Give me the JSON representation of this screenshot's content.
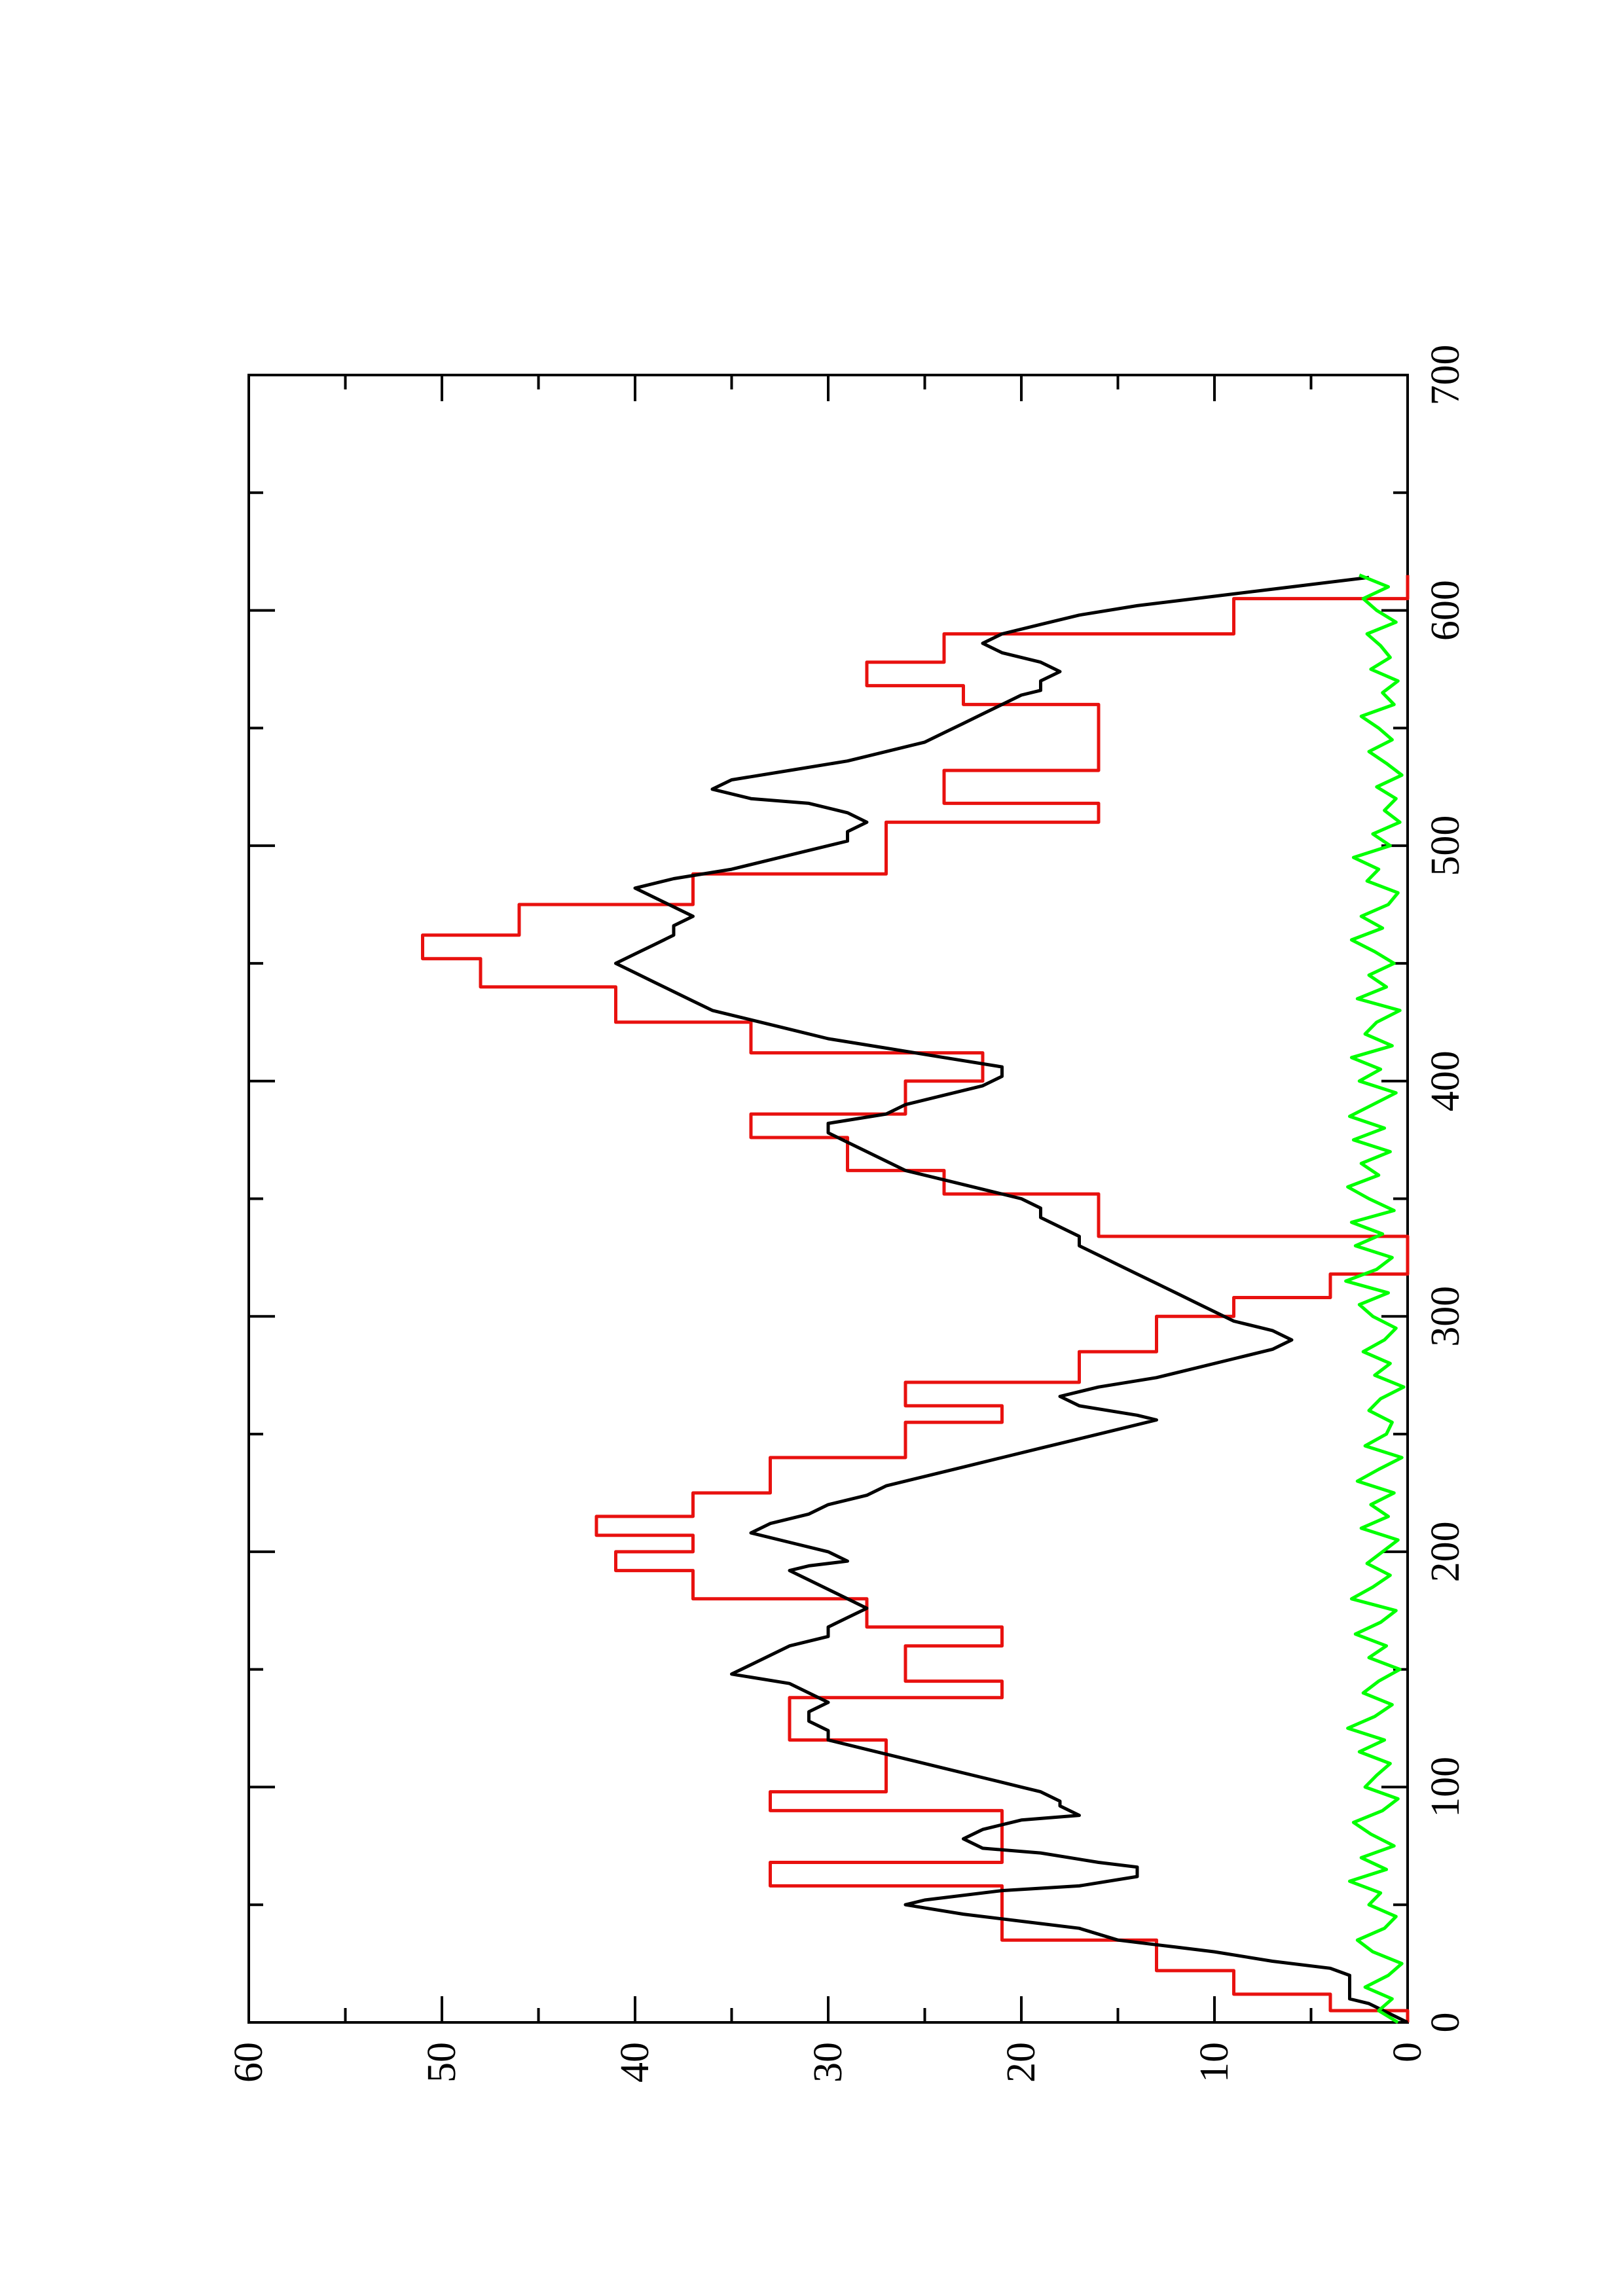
{
  "chart_data": {
    "type": "line",
    "title": "",
    "xlabel": "",
    "ylabel": "",
    "orientation": "rotated-90-ccw",
    "xlim": [
      0,
      700
    ],
    "ylim": [
      0,
      60
    ],
    "x_ticks": [
      0,
      100,
      200,
      300,
      400,
      500,
      600,
      700
    ],
    "x_tick_labels": [
      "0",
      "100",
      "200",
      "300",
      "400",
      "500",
      "600",
      "700"
    ],
    "x_minor_ticks": [
      50,
      150,
      250,
      350,
      450,
      550,
      650
    ],
    "y_ticks": [
      0,
      10,
      20,
      30,
      40,
      50,
      60
    ],
    "y_tick_labels": [
      "0",
      "10",
      "20",
      "30",
      "40",
      "50",
      "60"
    ],
    "y_minor_ticks": [
      5,
      15,
      25,
      35,
      45,
      55
    ],
    "grid": false,
    "legend": "none",
    "series": [
      {
        "color": "#e8110f",
        "x": [
          0,
          5,
          5,
          12,
          12,
          22,
          22,
          35,
          35,
          58,
          58,
          68,
          68,
          90,
          90,
          98,
          98,
          120,
          120,
          138,
          138,
          145,
          145,
          160,
          160,
          168,
          168,
          180,
          180,
          192,
          192,
          200,
          200,
          207,
          207,
          215,
          215,
          225,
          225,
          240,
          240,
          255,
          255,
          262,
          262,
          272,
          272,
          285,
          285,
          300,
          300,
          308,
          308,
          318,
          318,
          334,
          334,
          352,
          352,
          362,
          362,
          376,
          376,
          386,
          386,
          400,
          400,
          412,
          412,
          425,
          425,
          440,
          440,
          452,
          452,
          462,
          462,
          475,
          475,
          488,
          488,
          510,
          510,
          518,
          518,
          532,
          532,
          560,
          560,
          568,
          568,
          578,
          578,
          590,
          590,
          605,
          605,
          615
        ],
        "y": [
          0,
          0,
          4,
          4,
          9,
          9,
          13,
          13,
          21,
          21,
          33,
          33,
          21,
          21,
          33,
          33,
          27,
          27,
          32,
          32,
          21,
          21,
          26,
          26,
          21,
          21,
          28,
          28,
          37,
          37,
          41,
          41,
          37,
          37,
          42,
          42,
          37,
          37,
          33,
          33,
          26,
          26,
          21,
          21,
          26,
          26,
          17,
          17,
          13,
          13,
          9,
          9,
          4,
          4,
          0,
          0,
          16,
          16,
          24,
          24,
          29,
          29,
          34,
          34,
          26,
          26,
          22,
          22,
          34,
          34,
          41,
          41,
          48,
          48,
          51,
          51,
          46,
          46,
          37,
          37,
          27,
          27,
          16,
          16,
          24,
          24,
          16,
          16,
          23,
          23,
          28,
          28,
          24,
          24,
          9,
          9,
          0,
          0
        ]
      },
      {
        "color": "#000000",
        "x": [
          0,
          4,
          8,
          10,
          15,
          20,
          23,
          26,
          30,
          32,
          35,
          40,
          42,
          46,
          50,
          52,
          56,
          58,
          62,
          66,
          68,
          72,
          74,
          78,
          82,
          86,
          88,
          92,
          94,
          98,
          100,
          104,
          108,
          112,
          116,
          120,
          124,
          128,
          132,
          136,
          140,
          144,
          148,
          152,
          156,
          160,
          164,
          168,
          172,
          176,
          180,
          184,
          188,
          192,
          194,
          196,
          200,
          204,
          208,
          212,
          216,
          220,
          224,
          228,
          232,
          236,
          240,
          244,
          248,
          252,
          256,
          258,
          262,
          266,
          270,
          274,
          278,
          282,
          286,
          290,
          294,
          298,
          302,
          306,
          310,
          314,
          318,
          322,
          326,
          330,
          334,
          338,
          342,
          346,
          350,
          354,
          358,
          362,
          366,
          370,
          374,
          378,
          382,
          386,
          390,
          394,
          398,
          402,
          406,
          410,
          414,
          418,
          422,
          426,
          430,
          434,
          438,
          442,
          446,
          450,
          454,
          458,
          462,
          466,
          470,
          474,
          478,
          482,
          486,
          490,
          494,
          498,
          502,
          506,
          510,
          514,
          518,
          520,
          524,
          528,
          532,
          536,
          540,
          544,
          548,
          552,
          556,
          560,
          564,
          566,
          570,
          574,
          578,
          582,
          586,
          590,
          594,
          598,
          602,
          606,
          610,
          614
        ],
        "y": [
          0,
          1,
          2,
          3,
          3,
          3,
          4,
          7,
          10,
          12,
          15,
          17,
          19,
          23,
          26,
          25,
          21,
          17,
          14,
          14,
          16,
          19,
          22,
          23,
          22,
          20,
          17,
          18,
          18,
          19,
          20,
          22,
          24,
          26,
          28,
          30,
          30,
          31,
          31,
          30,
          31,
          32,
          35,
          34,
          33,
          32,
          30,
          30,
          29,
          28,
          29,
          30,
          31,
          32,
          31,
          29,
          30,
          32,
          34,
          33,
          31,
          30,
          28,
          27,
          25,
          23,
          21,
          19,
          17,
          15,
          13,
          14,
          17,
          18,
          16,
          13,
          11,
          9,
          7,
          6,
          7,
          9,
          10,
          11,
          12,
          13,
          14,
          15,
          16,
          17,
          17,
          18,
          19,
          19,
          20,
          22,
          24,
          26,
          27,
          28,
          29,
          30,
          30,
          27,
          26,
          24,
          22,
          21,
          21,
          24,
          27,
          30,
          32,
          34,
          36,
          37,
          38,
          39,
          40,
          41,
          40,
          39,
          38,
          38,
          37,
          38,
          39,
          40,
          38,
          35,
          33,
          31,
          29,
          29,
          28,
          29,
          31,
          34,
          36,
          35,
          32,
          29,
          27,
          25,
          24,
          23,
          22,
          21,
          20,
          19,
          19,
          18,
          19,
          21,
          22,
          21,
          19,
          17,
          14,
          10,
          6,
          2
        ]
      },
      {
        "color": "#00ff00",
        "x": [
          0,
          5,
          10,
          15,
          20,
          25,
          30,
          35,
          40,
          45,
          50,
          55,
          60,
          65,
          70,
          75,
          80,
          85,
          90,
          95,
          100,
          105,
          110,
          115,
          120,
          125,
          130,
          135,
          140,
          145,
          150,
          155,
          160,
          165,
          170,
          175,
          180,
          185,
          190,
          195,
          200,
          205,
          210,
          215,
          220,
          225,
          230,
          235,
          240,
          245,
          250,
          255,
          260,
          265,
          270,
          275,
          280,
          285,
          290,
          295,
          300,
          305,
          310,
          315,
          320,
          325,
          330,
          335,
          340,
          345,
          350,
          355,
          360,
          365,
          370,
          375,
          380,
          385,
          390,
          395,
          400,
          405,
          410,
          415,
          420,
          425,
          430,
          435,
          440,
          445,
          450,
          455,
          460,
          465,
          470,
          475,
          480,
          485,
          490,
          495,
          500,
          505,
          510,
          515,
          520,
          525,
          530,
          535,
          540,
          545,
          550,
          555,
          560,
          565,
          570,
          575,
          580,
          585,
          590,
          595,
          600,
          605,
          610,
          615
        ],
        "y": [
          0.5,
          1.5,
          0.8,
          2.2,
          1.0,
          0.3,
          1.8,
          2.6,
          1.2,
          0.6,
          2.0,
          1.4,
          3.0,
          1.1,
          2.4,
          0.7,
          1.9,
          2.8,
          1.3,
          0.5,
          2.2,
          1.6,
          0.9,
          2.5,
          1.2,
          3.1,
          1.7,
          0.8,
          2.3,
          1.5,
          0.4,
          2.0,
          1.1,
          2.7,
          1.4,
          0.6,
          2.9,
          1.8,
          0.9,
          2.1,
          1.3,
          0.5,
          2.4,
          1.0,
          1.9,
          0.7,
          2.6,
          1.5,
          0.3,
          2.2,
          1.1,
          0.8,
          2.0,
          1.4,
          0.2,
          1.7,
          0.9,
          2.3,
          1.2,
          0.6,
          1.8,
          2.5,
          1.0,
          3.2,
          1.6,
          0.8,
          2.7,
          1.3,
          2.9,
          0.7,
          2.0,
          3.1,
          1.5,
          2.4,
          0.9,
          2.8,
          1.2,
          3.0,
          1.8,
          0.6,
          2.5,
          1.4,
          2.9,
          0.8,
          2.2,
          1.6,
          0.4,
          2.6,
          1.1,
          2.0,
          0.7,
          1.7,
          2.9,
          1.3,
          2.4,
          1.0,
          0.5,
          2.1,
          1.5,
          2.8,
          0.9,
          1.8,
          0.4,
          1.2,
          0.6,
          1.6,
          0.3,
          1.1,
          2.0,
          0.8,
          1.5,
          2.4,
          0.7,
          1.3,
          0.5,
          1.9,
          0.9,
          1.4,
          2.1,
          0.6,
          1.6,
          2.3,
          1.0,
          2.5
        ]
      }
    ]
  }
}
